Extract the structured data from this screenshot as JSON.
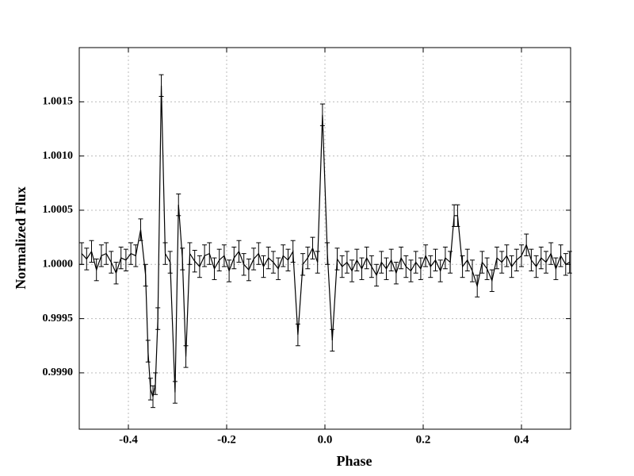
{
  "chart_data": {
    "type": "errorbar",
    "xlabel": "Phase",
    "ylabel": "Normalized Flux",
    "x": [
      -0.495,
      -0.485,
      -0.475,
      -0.465,
      -0.455,
      -0.445,
      -0.435,
      -0.425,
      -0.415,
      -0.405,
      -0.395,
      -0.385,
      -0.375,
      -0.365,
      -0.36,
      -0.355,
      -0.35,
      -0.345,
      -0.34,
      -0.333,
      -0.325,
      -0.315,
      -0.305,
      -0.298,
      -0.29,
      -0.283,
      -0.275,
      -0.265,
      -0.255,
      -0.245,
      -0.235,
      -0.225,
      -0.215,
      -0.205,
      -0.195,
      -0.185,
      -0.175,
      -0.165,
      -0.155,
      -0.145,
      -0.135,
      -0.125,
      -0.115,
      -0.105,
      -0.095,
      -0.085,
      -0.075,
      -0.065,
      -0.055,
      -0.045,
      -0.035,
      -0.025,
      -0.015,
      -0.005,
      0.005,
      0.015,
      0.025,
      0.035,
      0.045,
      0.055,
      0.065,
      0.075,
      0.085,
      0.095,
      0.105,
      0.115,
      0.125,
      0.135,
      0.145,
      0.155,
      0.165,
      0.175,
      0.185,
      0.195,
      0.205,
      0.215,
      0.225,
      0.235,
      0.245,
      0.255,
      0.263,
      0.27,
      0.28,
      0.29,
      0.3,
      0.31,
      0.32,
      0.33,
      0.34,
      0.35,
      0.36,
      0.37,
      0.38,
      0.39,
      0.4,
      0.41,
      0.42,
      0.43,
      0.44,
      0.45,
      0.46,
      0.47,
      0.48,
      0.49,
      0.498
    ],
    "values": [
      1.0001,
      1.00005,
      1.00012,
      0.99995,
      1.00008,
      1.0001,
      1.00002,
      0.99992,
      1.00006,
      1.00004,
      1.0001,
      1.00008,
      1.00032,
      0.9999,
      0.9992,
      0.99885,
      0.99878,
      0.9989,
      0.9995,
      1.00165,
      1.0001,
      1.00002,
      0.99882,
      1.00055,
      1.00005,
      0.99915,
      1.0001,
      1.00003,
      0.99998,
      1.00008,
      1.0001,
      0.99996,
      1.00004,
      1.00008,
      0.99994,
      1.00006,
      1.00012,
      1.0,
      0.99995,
      1.00005,
      1.0001,
      0.99998,
      1.00006,
      1.00002,
      0.99996,
      1.00008,
      1.00004,
      1.00012,
      0.99935,
      1.0,
      1.00006,
      1.00015,
      1.00002,
      1.00138,
      1.0001,
      0.9993,
      1.00005,
      0.99998,
      1.00002,
      0.99994,
      1.00004,
      0.99996,
      1.00006,
      0.99998,
      0.9999,
      1.00002,
      0.99996,
      1.00004,
      0.99992,
      1.00006,
      0.99998,
      0.99994,
      1.00002,
      0.99996,
      1.00008,
      0.99998,
      1.00004,
      0.99994,
      1.00006,
      1.00002,
      1.00045,
      1.00045,
      0.99998,
      1.00004,
      0.99994,
      0.9998,
      1.00002,
      0.99996,
      0.99985,
      1.00006,
      1.00002,
      1.00008,
      0.99998,
      1.00004,
      1.00008,
      1.00018,
      1.00004,
      0.99998,
      1.00006,
      1.00002,
      1.0001,
      0.99996,
      1.00008,
      1.0,
      1.00002
    ],
    "yerr": 0.0001,
    "color": "#000000",
    "xlim": [
      -0.5,
      0.5
    ],
    "xticks": [
      -0.4,
      -0.2,
      {
        "value": 0,
        "label": "0.0"
      },
      0.2,
      0.4
    ],
    "ylim": [
      0.99848,
      1.002
    ],
    "yticks": [
      {
        "value": 0.999,
        "label": "0.9990"
      },
      {
        "value": 0.9995,
        "label": "0.9995"
      },
      {
        "value": 1.0,
        "label": "1.0000"
      },
      {
        "value": 1.0005,
        "label": "1.0005"
      },
      {
        "value": 1.001,
        "label": "1.0010"
      },
      {
        "value": 1.0015,
        "label": "1.0015"
      }
    ],
    "grid": true
  }
}
